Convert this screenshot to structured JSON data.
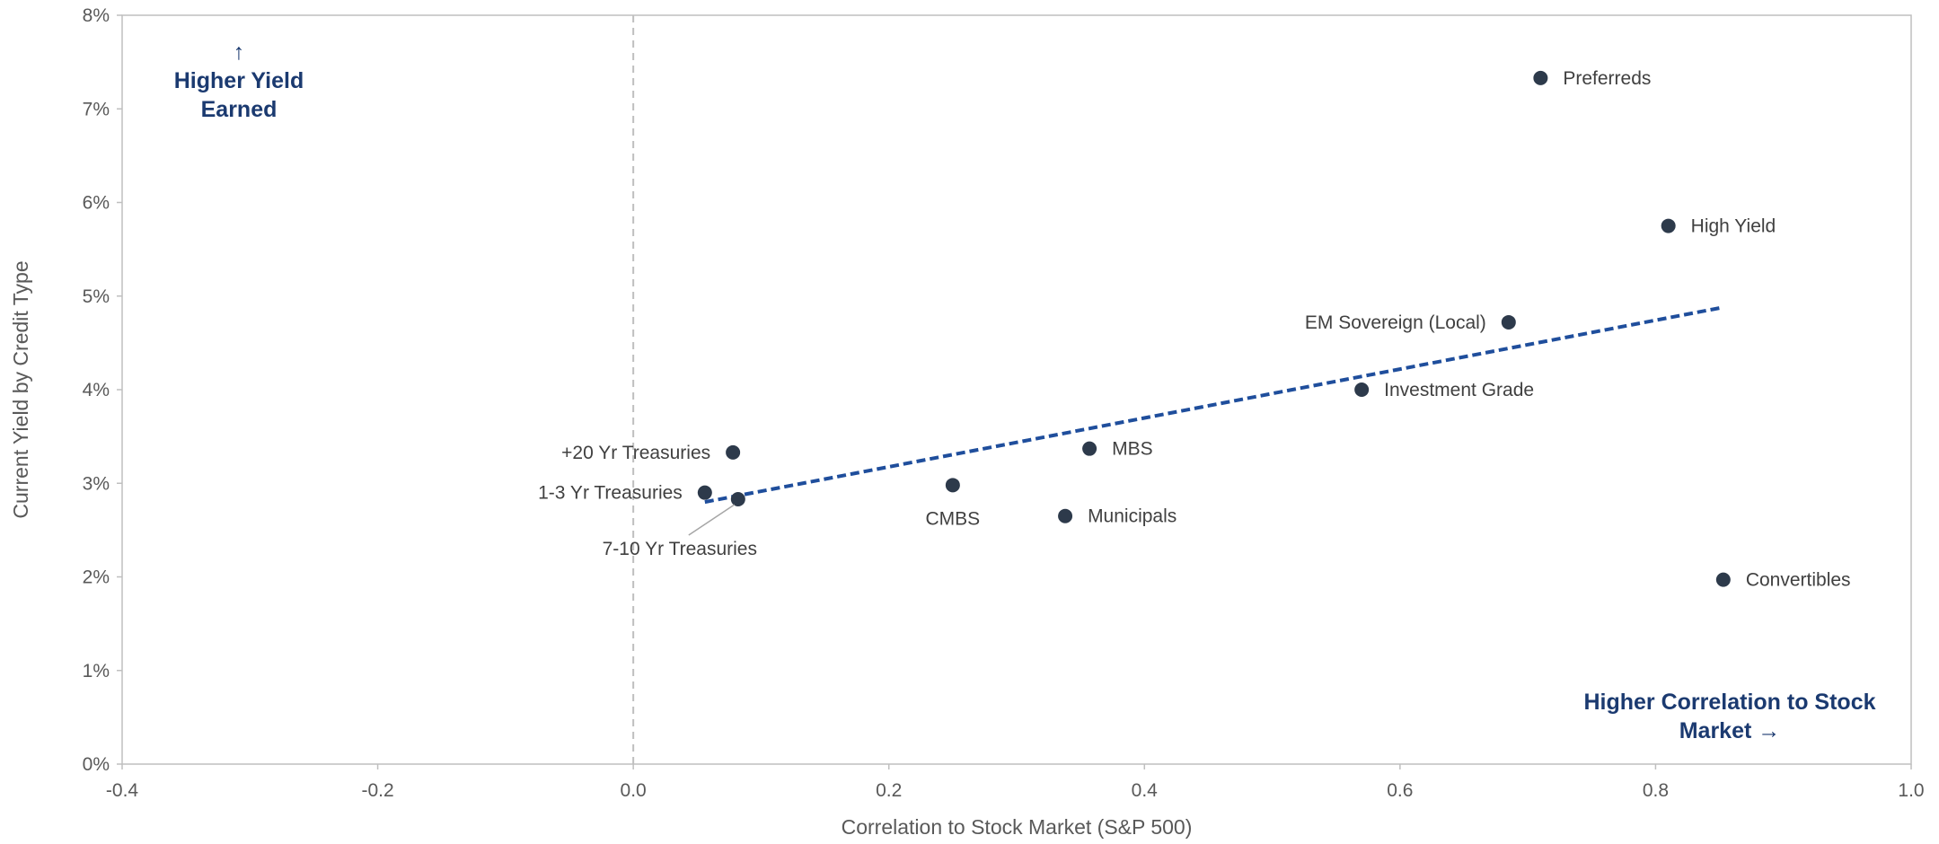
{
  "chart_data": {
    "type": "scatter",
    "xlabel": "Correlation to Stock Market (S&P 500)",
    "ylabel": "Current Yield by Credit Type",
    "xlim": [
      -0.4,
      1.0
    ],
    "ylim": [
      0,
      8
    ],
    "x_ticks": [
      "-0.4",
      "-0.2",
      "0.0",
      "0.2",
      "0.4",
      "0.6",
      "0.8",
      "1.0"
    ],
    "y_ticks": [
      "0%",
      "1%",
      "2%",
      "3%",
      "4%",
      "5%",
      "6%",
      "7%",
      "8%"
    ],
    "grid": false,
    "reference_line": {
      "axis": "x",
      "value": 0.0,
      "style": "dashed"
    },
    "points": [
      {
        "label": "Preferreds",
        "x": 0.71,
        "y": 7.33,
        "label_pos": "right"
      },
      {
        "label": "High Yield",
        "x": 0.81,
        "y": 5.75,
        "label_pos": "right"
      },
      {
        "label": "EM Sovereign (Local)",
        "x": 0.685,
        "y": 4.72,
        "label_pos": "left"
      },
      {
        "label": "Investment Grade",
        "x": 0.57,
        "y": 4.0,
        "label_pos": "right"
      },
      {
        "label": "MBS",
        "x": 0.357,
        "y": 3.37,
        "label_pos": "right"
      },
      {
        "label": "+20 Yr Treasuries",
        "x": 0.078,
        "y": 3.33,
        "label_pos": "left"
      },
      {
        "label": "CMBS",
        "x": 0.25,
        "y": 2.98,
        "label_pos": "below"
      },
      {
        "label": "1-3 Yr Treasuries",
        "x": 0.056,
        "y": 2.9,
        "label_pos": "left"
      },
      {
        "label": "7-10 Yr Treasuries",
        "x": 0.082,
        "y": 2.83,
        "label_pos": "below-left"
      },
      {
        "label": "Municipals",
        "x": 0.338,
        "y": 2.65,
        "label_pos": "right"
      },
      {
        "label": "Convertibles",
        "x": 0.853,
        "y": 1.97,
        "label_pos": "right"
      }
    ],
    "trendline": {
      "x": [
        0.056,
        0.853
      ],
      "y": [
        2.8,
        4.88
      ],
      "style": "dashed"
    },
    "annotations": [
      {
        "lines": [
          "↑",
          "Higher Yield",
          "Earned"
        ],
        "position": "top-left"
      },
      {
        "lines": [
          "Higher Correlation to Stock",
          "Market →"
        ],
        "position": "bottom-right"
      }
    ]
  },
  "colors": {
    "marker": "#2d3a4b",
    "trendline": "#1f4e9c",
    "callout": "#1b3a70",
    "axis": "#bfbfbf",
    "reference_line": "#bfbfbf",
    "text": "#595959"
  }
}
